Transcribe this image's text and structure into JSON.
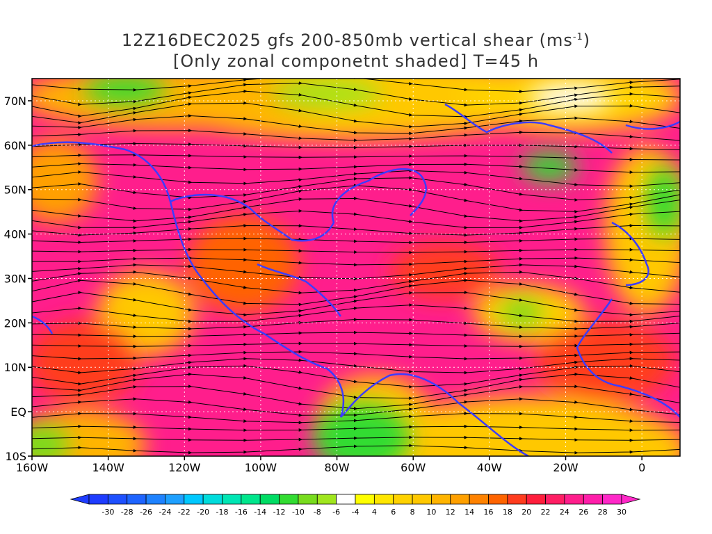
{
  "title": {
    "line1_pre": "12Z16DEC2025 gfs 200-850mb vertical shear (ms",
    "line1_sup": "-1",
    "line1_post": ")",
    "line2": "[Only zonal componetnt shaded] T=45 h"
  },
  "map": {
    "lon_range": [
      -160,
      10
    ],
    "lat_range": [
      -10,
      75
    ],
    "lon_ticks": [
      {
        "value": -160,
        "label": "160W"
      },
      {
        "value": -140,
        "label": "140W"
      },
      {
        "value": -120,
        "label": "120W"
      },
      {
        "value": -100,
        "label": "100W"
      },
      {
        "value": -80,
        "label": "80W"
      },
      {
        "value": -60,
        "label": "60W"
      },
      {
        "value": -40,
        "label": "40W"
      },
      {
        "value": -20,
        "label": "20W"
      },
      {
        "value": 0,
        "label": "0"
      }
    ],
    "lat_ticks": [
      {
        "value": -10,
        "label": "10S"
      },
      {
        "value": 0,
        "label": "EQ"
      },
      {
        "value": 10,
        "label": "10N"
      },
      {
        "value": 20,
        "label": "20N"
      },
      {
        "value": 30,
        "label": "30N"
      },
      {
        "value": 40,
        "label": "40N"
      },
      {
        "value": 50,
        "label": "50N"
      },
      {
        "value": 60,
        "label": "60N"
      },
      {
        "value": 70,
        "label": "70N"
      }
    ],
    "gridlines": "dotted",
    "coastline_color": "#3c3cff",
    "streamline_color": "#000000"
  },
  "colorbar": {
    "labels": [
      "-30",
      "-28",
      "-26",
      "-24",
      "-22",
      "-20",
      "-18",
      "-16",
      "-14",
      "-12",
      "-10",
      "-8",
      "-6",
      "-4",
      "4",
      "6",
      "8",
      "10",
      "12",
      "14",
      "16",
      "18",
      "20",
      "22",
      "24",
      "26",
      "28",
      "30"
    ],
    "colors": [
      "#1e3cff",
      "#1e50ff",
      "#1e64ff",
      "#1e82ff",
      "#1ea0ff",
      "#00c8ff",
      "#00dcdc",
      "#00e6b4",
      "#00e68c",
      "#00dc64",
      "#32dc32",
      "#78dc1e",
      "#a0e61e",
      "#ffffff",
      "#ffff00",
      "#ffe600",
      "#ffd200",
      "#ffc800",
      "#ffb400",
      "#ffa000",
      "#ff8200",
      "#ff6400",
      "#ff3c1e",
      "#ff1e3c",
      "#ff1e64",
      "#ff1e8c",
      "#ff1eaa",
      "#ff28c8"
    ]
  }
}
